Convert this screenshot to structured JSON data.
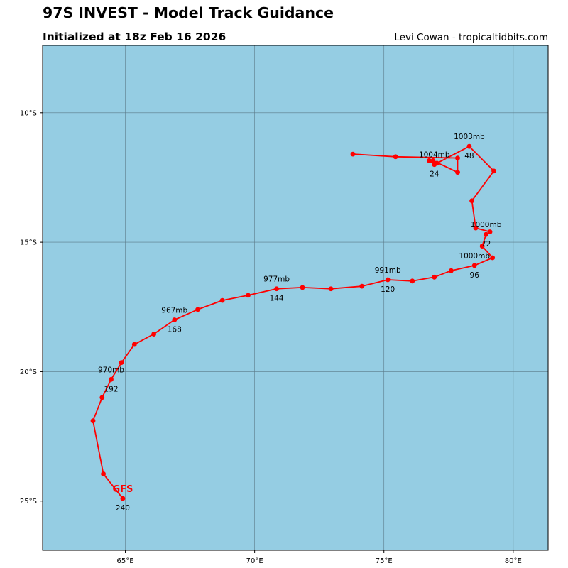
{
  "header": {
    "title": "97S INVEST - Model Track Guidance",
    "subtitle": "Initialized at 18z Feb 16 2026",
    "credit": "Levi Cowan - tropicaltidbits.com"
  },
  "colors": {
    "ocean": "#95cde3",
    "grid": "#5b7a88",
    "track": "#ff0000"
  },
  "map_data": {
    "lon_range": [
      61.8,
      81.35
    ],
    "lat_range": [
      -26.9,
      -7.4
    ],
    "x_ticks": [
      {
        "lon": 65,
        "label": "65°E"
      },
      {
        "lon": 70,
        "label": "70°E"
      },
      {
        "lon": 75,
        "label": "75°E"
      },
      {
        "lon": 80,
        "label": "80°E"
      }
    ],
    "y_ticks": [
      {
        "lat": -10,
        "label": "10°S"
      },
      {
        "lat": -15,
        "label": "15°S"
      },
      {
        "lat": -20,
        "label": "20°S"
      },
      {
        "lat": -25,
        "label": "25°S"
      }
    ],
    "grid": true
  },
  "track": {
    "model": "GFS",
    "points": [
      {
        "lon": 73.8,
        "lat": -11.6
      },
      {
        "lon": 75.45,
        "lat": -11.7
      },
      {
        "lon": 77.85,
        "lat": -11.75
      },
      {
        "lon": 77.85,
        "lat": -12.3
      },
      {
        "lon": 76.9,
        "lat": -11.85
      },
      {
        "lon": 76.75,
        "lat": -11.85
      },
      {
        "lon": 76.95,
        "lat": -12.0,
        "hour": "24",
        "pressure": "1004mb"
      },
      {
        "lon": 77.05,
        "lat": -11.95
      },
      {
        "lon": 78.3,
        "lat": -11.3,
        "hour": "48",
        "pressure": "1003mb"
      },
      {
        "lon": 79.25,
        "lat": -12.25
      },
      {
        "lon": 78.4,
        "lat": -13.4
      },
      {
        "lon": 78.55,
        "lat": -14.45
      },
      {
        "lon": 79.1,
        "lat": -14.6
      },
      {
        "lon": 78.95,
        "lat": -14.7,
        "hour": "72",
        "pressure": "1000mb"
      },
      {
        "lon": 78.8,
        "lat": -15.15
      },
      {
        "lon": 79.2,
        "lat": -15.6
      },
      {
        "lon": 78.5,
        "lat": -15.9,
        "hour": "96",
        "pressure": "1000mb"
      },
      {
        "lon": 77.6,
        "lat": -16.1
      },
      {
        "lon": 76.95,
        "lat": -16.35
      },
      {
        "lon": 76.1,
        "lat": -16.5
      },
      {
        "lon": 75.15,
        "lat": -16.45,
        "hour": "120",
        "pressure": "991mb"
      },
      {
        "lon": 74.15,
        "lat": -16.7
      },
      {
        "lon": 72.95,
        "lat": -16.8
      },
      {
        "lon": 71.85,
        "lat": -16.75
      },
      {
        "lon": 70.85,
        "lat": -16.8,
        "hour": "144",
        "pressure": "977mb"
      },
      {
        "lon": 69.75,
        "lat": -17.05
      },
      {
        "lon": 68.75,
        "lat": -17.25
      },
      {
        "lon": 67.8,
        "lat": -17.6
      },
      {
        "lon": 66.9,
        "lat": -18.0,
        "hour": "168",
        "pressure": "967mb"
      },
      {
        "lon": 66.1,
        "lat": -18.55
      },
      {
        "lon": 65.35,
        "lat": -18.95
      },
      {
        "lon": 64.85,
        "lat": -19.65
      },
      {
        "lon": 64.45,
        "lat": -20.3,
        "hour": "192",
        "pressure": "970mb"
      },
      {
        "lon": 64.1,
        "lat": -21.0
      },
      {
        "lon": 63.75,
        "lat": -21.9
      },
      {
        "lon": 64.15,
        "lat": -23.95
      },
      {
        "lon": 64.9,
        "lat": -24.9,
        "hour": "240"
      }
    ]
  }
}
